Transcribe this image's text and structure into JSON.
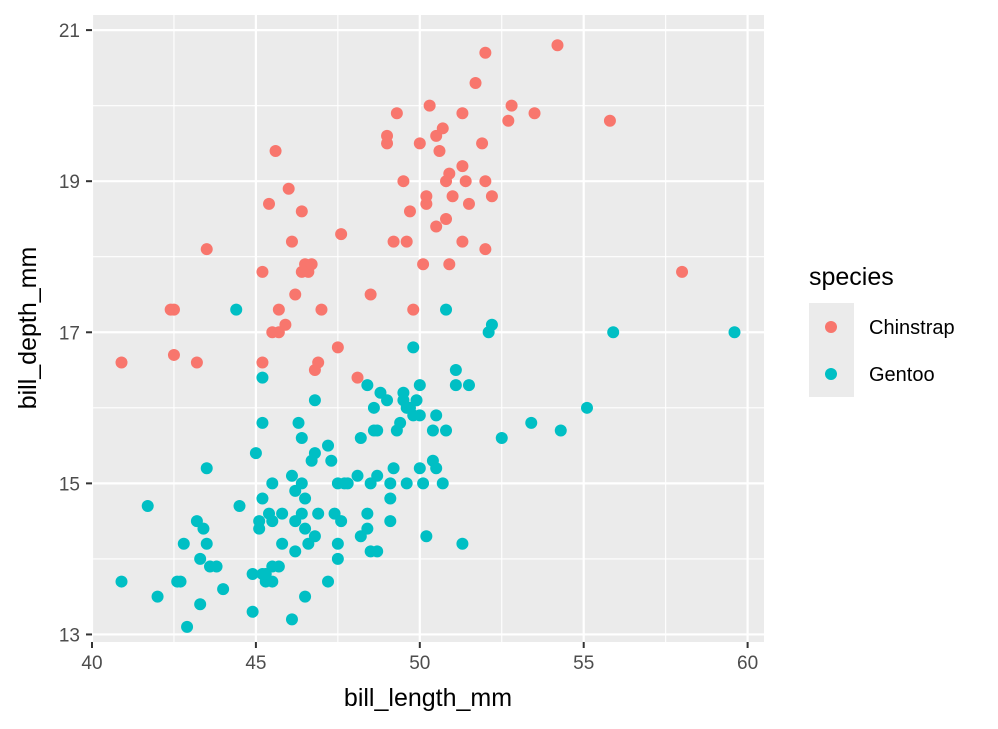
{
  "chart_data": {
    "type": "scatter",
    "title": "",
    "xlabel": "bill_length_mm",
    "ylabel": "bill_depth_mm",
    "xlim": [
      40,
      60.5
    ],
    "ylim": [
      12.9,
      21.2
    ],
    "x_ticks": [
      40,
      45,
      50,
      55,
      60
    ],
    "y_ticks": [
      13,
      15,
      17,
      19,
      21
    ],
    "grid": true,
    "legend": {
      "title": "species",
      "position": "right"
    },
    "series": [
      {
        "name": "Chinstrap",
        "color": "#F8766D",
        "points": [
          [
            40.9,
            16.6
          ],
          [
            42.4,
            17.3
          ],
          [
            42.5,
            16.7
          ],
          [
            42.5,
            17.3
          ],
          [
            43.2,
            16.6
          ],
          [
            43.5,
            18.1
          ],
          [
            45.2,
            16.6
          ],
          [
            45.2,
            17.8
          ],
          [
            45.4,
            18.7
          ],
          [
            45.5,
            17.0
          ],
          [
            45.6,
            19.4
          ],
          [
            45.7,
            17.0
          ],
          [
            45.7,
            17.3
          ],
          [
            45.9,
            17.1
          ],
          [
            46.0,
            18.9
          ],
          [
            46.1,
            18.2
          ],
          [
            46.2,
            17.5
          ],
          [
            46.4,
            17.8
          ],
          [
            46.4,
            18.6
          ],
          [
            46.5,
            17.9
          ],
          [
            46.6,
            17.8
          ],
          [
            46.7,
            17.9
          ],
          [
            46.8,
            16.5
          ],
          [
            46.9,
            16.6
          ],
          [
            47.0,
            17.3
          ],
          [
            47.5,
            16.8
          ],
          [
            47.6,
            18.3
          ],
          [
            48.1,
            16.4
          ],
          [
            48.5,
            17.5
          ],
          [
            49.0,
            19.5
          ],
          [
            49.0,
            19.6
          ],
          [
            49.2,
            18.2
          ],
          [
            49.3,
            19.9
          ],
          [
            49.5,
            19.0
          ],
          [
            49.6,
            18.2
          ],
          [
            49.7,
            18.6
          ],
          [
            49.8,
            17.3
          ],
          [
            50.0,
            19.5
          ],
          [
            50.1,
            17.9
          ],
          [
            50.2,
            18.7
          ],
          [
            50.2,
            18.8
          ],
          [
            50.3,
            20.0
          ],
          [
            50.5,
            18.4
          ],
          [
            50.5,
            19.6
          ],
          [
            50.6,
            19.4
          ],
          [
            50.7,
            19.7
          ],
          [
            50.8,
            18.5
          ],
          [
            50.8,
            19.0
          ],
          [
            50.9,
            17.9
          ],
          [
            50.9,
            19.1
          ],
          [
            51.0,
            18.8
          ],
          [
            51.3,
            18.2
          ],
          [
            51.3,
            19.2
          ],
          [
            51.3,
            19.9
          ],
          [
            51.4,
            19.0
          ],
          [
            51.5,
            18.7
          ],
          [
            51.7,
            20.3
          ],
          [
            51.9,
            19.5
          ],
          [
            52.0,
            18.1
          ],
          [
            52.0,
            19.0
          ],
          [
            52.0,
            20.7
          ],
          [
            52.2,
            18.8
          ],
          [
            52.7,
            19.8
          ],
          [
            52.8,
            20.0
          ],
          [
            53.5,
            19.9
          ],
          [
            54.2,
            20.8
          ],
          [
            55.8,
            19.8
          ],
          [
            58.0,
            17.8
          ]
        ]
      },
      {
        "name": "Gentoo",
        "color": "#00BFC4",
        "points": [
          [
            40.9,
            13.7
          ],
          [
            41.7,
            14.7
          ],
          [
            42.0,
            13.5
          ],
          [
            42.6,
            13.7
          ],
          [
            42.7,
            13.7
          ],
          [
            42.8,
            14.2
          ],
          [
            42.9,
            13.1
          ],
          [
            43.2,
            14.5
          ],
          [
            43.3,
            13.4
          ],
          [
            43.3,
            14.0
          ],
          [
            43.4,
            14.4
          ],
          [
            43.5,
            14.2
          ],
          [
            43.5,
            15.2
          ],
          [
            43.6,
            13.9
          ],
          [
            43.8,
            13.9
          ],
          [
            44.0,
            13.6
          ],
          [
            44.4,
            17.3
          ],
          [
            44.5,
            14.7
          ],
          [
            44.9,
            13.3
          ],
          [
            44.9,
            13.8
          ],
          [
            45.0,
            15.4
          ],
          [
            45.1,
            14.4
          ],
          [
            45.1,
            14.5
          ],
          [
            45.2,
            13.8
          ],
          [
            45.2,
            14.8
          ],
          [
            45.2,
            15.8
          ],
          [
            45.2,
            16.4
          ],
          [
            45.3,
            13.7
          ],
          [
            45.3,
            13.8
          ],
          [
            45.4,
            14.6
          ],
          [
            45.5,
            13.7
          ],
          [
            45.5,
            13.9
          ],
          [
            45.5,
            14.5
          ],
          [
            45.5,
            15.0
          ],
          [
            45.7,
            13.9
          ],
          [
            45.8,
            14.2
          ],
          [
            45.8,
            14.6
          ],
          [
            46.1,
            13.2
          ],
          [
            46.1,
            15.1
          ],
          [
            46.2,
            14.1
          ],
          [
            46.2,
            14.5
          ],
          [
            46.2,
            14.9
          ],
          [
            46.3,
            15.8
          ],
          [
            46.4,
            14.6
          ],
          [
            46.4,
            15.0
          ],
          [
            46.4,
            15.6
          ],
          [
            46.5,
            13.5
          ],
          [
            46.5,
            14.4
          ],
          [
            46.5,
            14.8
          ],
          [
            46.6,
            14.2
          ],
          [
            46.7,
            15.3
          ],
          [
            46.8,
            14.3
          ],
          [
            46.8,
            15.4
          ],
          [
            46.8,
            16.1
          ],
          [
            46.9,
            14.6
          ],
          [
            47.2,
            13.7
          ],
          [
            47.2,
            15.5
          ],
          [
            47.3,
            15.3
          ],
          [
            47.4,
            14.6
          ],
          [
            47.5,
            14.0
          ],
          [
            47.5,
            14.2
          ],
          [
            47.5,
            15.0
          ],
          [
            47.6,
            14.5
          ],
          [
            47.7,
            15.0
          ],
          [
            47.8,
            15.0
          ],
          [
            48.1,
            15.1
          ],
          [
            48.2,
            14.3
          ],
          [
            48.2,
            15.6
          ],
          [
            48.4,
            14.4
          ],
          [
            48.4,
            14.6
          ],
          [
            48.4,
            16.3
          ],
          [
            48.5,
            14.1
          ],
          [
            48.5,
            15.0
          ],
          [
            48.6,
            15.7
          ],
          [
            48.6,
            16.0
          ],
          [
            48.7,
            14.1
          ],
          [
            48.7,
            15.1
          ],
          [
            48.7,
            15.7
          ],
          [
            48.8,
            16.2
          ],
          [
            49.0,
            16.1
          ],
          [
            49.1,
            14.5
          ],
          [
            49.1,
            14.8
          ],
          [
            49.1,
            15.0
          ],
          [
            49.2,
            15.2
          ],
          [
            49.3,
            15.7
          ],
          [
            49.4,
            15.8
          ],
          [
            49.5,
            16.1
          ],
          [
            49.5,
            16.2
          ],
          [
            49.6,
            15.0
          ],
          [
            49.6,
            16.0
          ],
          [
            49.7,
            16.0
          ],
          [
            49.8,
            15.9
          ],
          [
            49.8,
            16.8
          ],
          [
            49.9,
            16.1
          ],
          [
            50.0,
            15.2
          ],
          [
            50.0,
            15.9
          ],
          [
            50.0,
            16.3
          ],
          [
            50.1,
            15.0
          ],
          [
            50.2,
            14.3
          ],
          [
            50.4,
            15.3
          ],
          [
            50.4,
            15.7
          ],
          [
            50.5,
            15.2
          ],
          [
            50.5,
            15.9
          ],
          [
            50.7,
            15.0
          ],
          [
            50.8,
            15.7
          ],
          [
            50.8,
            17.3
          ],
          [
            51.1,
            16.3
          ],
          [
            51.1,
            16.5
          ],
          [
            51.3,
            14.2
          ],
          [
            51.5,
            16.3
          ],
          [
            52.1,
            17.0
          ],
          [
            52.2,
            17.1
          ],
          [
            52.5,
            15.6
          ],
          [
            53.4,
            15.8
          ],
          [
            54.3,
            15.7
          ],
          [
            55.1,
            16.0
          ],
          [
            55.9,
            17.0
          ],
          [
            59.6,
            17.0
          ]
        ]
      }
    ]
  }
}
